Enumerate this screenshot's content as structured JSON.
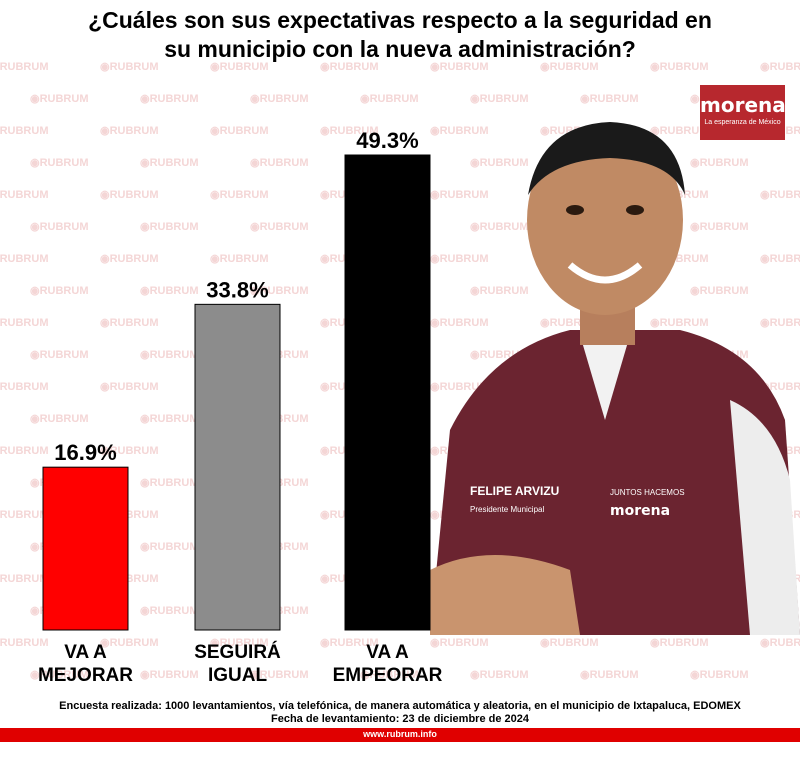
{
  "title_line1": "¿Cuáles son sus expectativas respecto a la seguridad en",
  "title_line2": "su municipio con la nueva administración?",
  "watermark_text": "RUBRUM",
  "logo": {
    "name": "morena",
    "tagline": "La esperanza de México"
  },
  "photo": {
    "vest_text_left": "FELIPE ARVIZU",
    "vest_text_sub": "Presidente Municipal",
    "vest_text_right": "JUNTOS HACEMOS",
    "vest_brand": "morena"
  },
  "chart_data": {
    "type": "bar",
    "categories": [
      "VA A MEJORAR",
      "SEGUIRÁ IGUAL",
      "VA A EMPEORAR"
    ],
    "category_lines": [
      [
        "VA A",
        "MEJORAR"
      ],
      [
        "SEGUIRÁ",
        "IGUAL"
      ],
      [
        "VA A",
        "EMPEORAR"
      ]
    ],
    "values": [
      16.9,
      33.8,
      49.3
    ],
    "value_labels": [
      "16.9%",
      "33.8%",
      "49.3%"
    ],
    "colors": [
      "#ff0000",
      "#8c8c8c",
      "#000000"
    ],
    "ylim": [
      0,
      49.3
    ],
    "grid": false,
    "title": "¿Cuáles son sus expectativas respecto a la seguridad en su municipio con la nueva administración?"
  },
  "footer": {
    "line1": "Encuesta realizada: 1000 levantamientos, vía telefónica, de manera automática y aleatoria, en el municipio de Ixtapaluca, EDOMEX",
    "line2": "Fecha de levantamiento: 23 de diciembre de 2024",
    "url": "www.rubrum.info"
  }
}
